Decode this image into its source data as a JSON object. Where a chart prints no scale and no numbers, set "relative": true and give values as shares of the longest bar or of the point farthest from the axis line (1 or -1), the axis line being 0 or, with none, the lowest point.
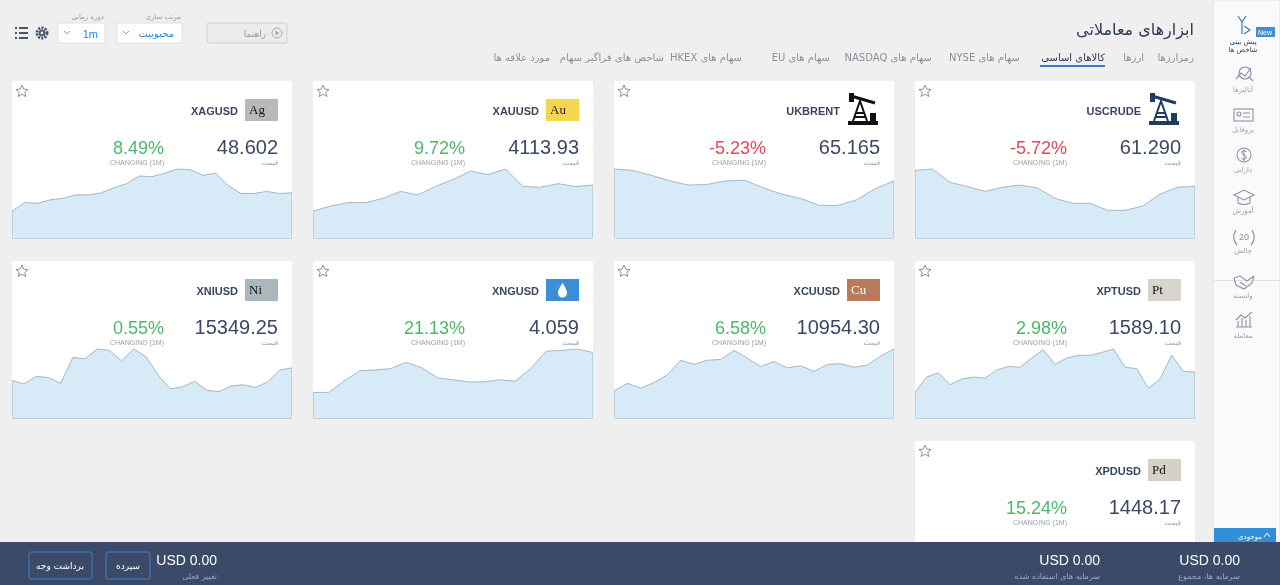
{
  "chart_data": [
    {
      "type": "area",
      "relative": true,
      "title": "USCRUDE",
      "categories": [
        null,
        null,
        null,
        null,
        null,
        null,
        null,
        null,
        null,
        null,
        null,
        null,
        null,
        null,
        null,
        null,
        null
      ],
      "values": [
        0.98,
        1,
        0.81,
        0.75,
        0.68,
        0.74,
        0.77,
        0.73,
        0.58,
        0.51,
        0.51,
        0.41,
        0.41,
        0.47,
        0.64,
        0.74,
        0.75
      ],
      "color": "#d6eaf8",
      "annotations": [
        "61.290",
        "قیمت",
        "-5.72%",
        "CHANGING (1M)"
      ]
    },
    {
      "type": "area",
      "relative": true,
      "title": "UKBRENT",
      "categories": [
        null,
        null,
        null,
        null,
        null,
        null,
        null,
        null,
        null,
        null,
        null,
        null,
        null,
        null,
        null,
        null
      ],
      "values": [
        1,
        0.98,
        0.91,
        0.83,
        0.77,
        0.78,
        0.83,
        0.84,
        0.73,
        0.64,
        0.58,
        0.48,
        0.48,
        0.56,
        0.72,
        0.83
      ],
      "color": "#d6eaf8",
      "annotations": [
        "65.165",
        "قیمت",
        "-5.23%",
        "CHANGING (1M)"
      ]
    },
    {
      "type": "area",
      "relative": true,
      "title": "XAUUSD",
      "categories": [
        null,
        null,
        null,
        null,
        null,
        null,
        null,
        null,
        null,
        null,
        null,
        null,
        null,
        null,
        null,
        null,
        null
      ],
      "values": [
        0.4,
        0.47,
        0.52,
        0.52,
        0.58,
        0.68,
        0.63,
        0.75,
        0.85,
        0.97,
        0.92,
        1,
        0.75,
        0.74,
        0.79,
        0.75,
        0.77
      ],
      "color": "#d6eaf8",
      "annotations": [
        "4113.93",
        "قیمت",
        "9.72%",
        "CHANGING (1M)",
        "Au"
      ]
    },
    {
      "type": "area",
      "relative": true,
      "title": "XAGUSD",
      "categories": [
        null,
        null,
        null,
        null,
        null,
        null,
        null,
        null,
        null,
        null,
        null,
        null,
        null,
        null,
        null,
        null,
        null,
        null,
        null,
        null,
        null,
        null,
        null
      ],
      "values": [
        0.4,
        0.52,
        0.51,
        0.56,
        0.58,
        0.63,
        0.63,
        0.66,
        0.73,
        0.79,
        0.9,
        0.89,
        0.94,
        1,
        0.99,
        0.91,
        0.94,
        0.76,
        0.65,
        0.65,
        0.68,
        0.65,
        0.66
      ],
      "color": "#d6eaf8",
      "annotations": [
        "48.602",
        "قیمت",
        "8.49%",
        "CHANGING (1M)",
        "Ag"
      ]
    },
    {
      "type": "area",
      "relative": true,
      "title": "XPTUSD",
      "categories": [
        null,
        null,
        null,
        null,
        null,
        null,
        null,
        null,
        null,
        null,
        null,
        null,
        null,
        null,
        null,
        null,
        null,
        null,
        null,
        null,
        null,
        null,
        null,
        null,
        null
      ],
      "values": [
        0.38,
        0.6,
        0.66,
        0.49,
        0.57,
        0.6,
        0.58,
        0.7,
        0.75,
        0.74,
        0.87,
        0.99,
        0.78,
        0.87,
        0.91,
        0.91,
        0.95,
        1,
        0.74,
        0.72,
        0.44,
        0.57,
        0.91,
        0.68,
        0.67
      ],
      "color": "#d6eaf8",
      "annotations": [
        "1589.10",
        "قیمت",
        "2.98%",
        "CHANGING (1M)",
        "Pt"
      ]
    },
    {
      "type": "area",
      "relative": true,
      "title": "XCUUSD",
      "categories": [
        null,
        null,
        null,
        null,
        null,
        null,
        null,
        null,
        null,
        null,
        null,
        null,
        null,
        null,
        null,
        null,
        null,
        null,
        null,
        null,
        null,
        null
      ],
      "values": [
        0.4,
        0.51,
        0.44,
        0.52,
        0.63,
        0.84,
        0.78,
        0.84,
        0.85,
        0.98,
        0.87,
        0.75,
        0.82,
        0.73,
        0.76,
        0.68,
        0.78,
        0.79,
        0.74,
        0.77,
        0.9,
        1
      ],
      "color": "#d6eaf8",
      "annotations": [
        "10954.30",
        "قیمت",
        "6.58%",
        "CHANGING (1M)",
        "Cu"
      ]
    },
    {
      "type": "area",
      "relative": true,
      "title": "XNGUSD",
      "categories": [
        null,
        null,
        null,
        null,
        null,
        null,
        null,
        null,
        null,
        null,
        null,
        null,
        null,
        null,
        null,
        null,
        null,
        null,
        null
      ],
      "values": [
        0.38,
        0.38,
        0.54,
        0.69,
        0.7,
        0.72,
        0.81,
        0.73,
        0.59,
        0.56,
        0.53,
        0.53,
        0.56,
        0.54,
        0.72,
        0.97,
        0.98,
        1,
        0.95
      ],
      "color": "#d6eaf8",
      "annotations": [
        "4.059",
        "قیمت",
        "21.13%",
        "CHANGING (1M)"
      ]
    },
    {
      "type": "area",
      "relative": true,
      "title": "XNIUSD",
      "categories": [
        null,
        null,
        null,
        null,
        null,
        null,
        null,
        null,
        null,
        null,
        null,
        null,
        null,
        null,
        null,
        null,
        null,
        null,
        null,
        null,
        null,
        null,
        null,
        null
      ],
      "values": [
        0.55,
        0.5,
        0.61,
        0.59,
        0.51,
        0.88,
        0.86,
        1,
        0.98,
        0.83,
        1,
        0.89,
        0.63,
        0.43,
        0.46,
        0.54,
        0.41,
        0.39,
        0.47,
        0.49,
        0.45,
        0.53,
        0.7,
        0.73
      ],
      "color": "#d6eaf8",
      "annotations": [
        "15349.25",
        "قیمت",
        "0.55%",
        "CHANGING (1M)",
        "Ni"
      ]
    },
    {
      "type": "other",
      "title": "XPDUSD",
      "annotations": [
        "1448.17",
        "قیمت",
        "15.24%",
        "CHANGING (1M)",
        "Pd"
      ]
    },
    {
      "type": "other",
      "title": "ابزارهای معاملاتی",
      "annotations": [
        "رمزارزها",
        "ارزها",
        "کالاهای اساسی",
        "سهام های NYSE",
        "سهام های NASDAQ",
        "سهام های EU",
        "سهام های HKEX",
        "شاخص های فراگیر سهام",
        "مورد علاقه ها",
        "راهنما",
        "مرتب سازی",
        "محبوبیت",
        "دوره زمانی",
        "1m",
        "New",
        "پیش بینی",
        "شاخص ها",
        "آنالیزها",
        "پروفایل",
        "دارایی",
        "آموزش",
        "20",
        "چالش",
        "وابسته",
        "معامله",
        "موجودی",
        "USD 0.00",
        "سرمایه ها، مجموع",
        "USD 0.00",
        "سرمایه های استفاده شده",
        "USD 0.00",
        "تغییر فعلی",
        "سپرده",
        "برداشت وجه"
      ]
    }
  ]
}
